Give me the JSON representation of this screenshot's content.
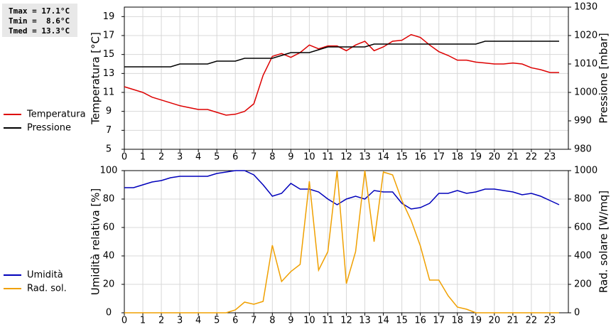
{
  "chart_data": [
    {
      "type": "line",
      "annotations": [
        "Tmax = 17.1°C",
        "Tmin =  8.6°C",
        "Tmed = 13.3°C"
      ],
      "ylabel": "Temperatura [°C]",
      "y2label": "Pressione [mbar]",
      "x": [
        0,
        0.5,
        1,
        1.5,
        2,
        2.5,
        3,
        3.5,
        4,
        4.5,
        5,
        5.5,
        6,
        6.5,
        7,
        7.5,
        8,
        8.5,
        9,
        9.5,
        10,
        10.5,
        11,
        11.5,
        12,
        12.5,
        13,
        13.5,
        14,
        14.5,
        15,
        15.5,
        16,
        16.5,
        17,
        17.5,
        18,
        18.5,
        19,
        19.5,
        20,
        20.5,
        21,
        21.5,
        22,
        22.5,
        23,
        23.5
      ],
      "xlim": [
        0,
        24
      ],
      "xticks": [
        0,
        1,
        2,
        3,
        4,
        5,
        6,
        7,
        8,
        9,
        10,
        11,
        12,
        13,
        14,
        15,
        16,
        17,
        18,
        19,
        20,
        21,
        22,
        23
      ],
      "ylim": [
        5,
        20
      ],
      "yticks": [
        5,
        7,
        9,
        11,
        13,
        15,
        17,
        19
      ],
      "y2lim": [
        980,
        1030
      ],
      "y2ticks": [
        980,
        990,
        1000,
        1010,
        1020,
        1030
      ],
      "grid": true,
      "series": [
        {
          "name": "Temperatura",
          "color": "#dd0000",
          "values": [
            11.6,
            11.3,
            11.0,
            10.5,
            10.2,
            9.9,
            9.6,
            9.4,
            9.2,
            9.2,
            8.9,
            8.6,
            8.7,
            9.0,
            9.8,
            12.8,
            14.8,
            15.1,
            14.7,
            15.2,
            16.0,
            15.6,
            15.9,
            15.9,
            15.4,
            16.0,
            16.4,
            15.4,
            15.8,
            16.4,
            16.5,
            17.1,
            16.8,
            16.0,
            15.3,
            14.9,
            14.4,
            14.4,
            14.2,
            14.1,
            14.0,
            14.0,
            14.1,
            14.0,
            13.6,
            13.4,
            13.1,
            13.1
          ]
        },
        {
          "name": "Pressione",
          "color": "#000000",
          "axis": "y2",
          "values": [
            1009,
            1009,
            1009,
            1009,
            1009,
            1009,
            1010,
            1010,
            1010,
            1010,
            1011,
            1011,
            1011,
            1012,
            1012,
            1012,
            1012,
            1013,
            1014,
            1014,
            1014,
            1015,
            1016,
            1016,
            1016,
            1016,
            1016,
            1017,
            1017,
            1017,
            1017,
            1017,
            1017,
            1017,
            1017,
            1017,
            1017,
            1017,
            1017,
            1018,
            1018,
            1018,
            1018,
            1018,
            1018,
            1018,
            1018,
            1018
          ]
        }
      ]
    },
    {
      "type": "line",
      "ylabel": "Umidità relativa [%]",
      "y2label": "Rad. solare [W/mq]",
      "x": [
        0,
        0.5,
        1,
        1.5,
        2,
        2.5,
        3,
        3.5,
        4,
        4.5,
        5,
        5.5,
        6,
        6.5,
        7,
        7.5,
        8,
        8.5,
        9,
        9.5,
        10,
        10.5,
        11,
        11.5,
        12,
        12.5,
        13,
        13.5,
        14,
        14.5,
        15,
        15.5,
        16,
        16.5,
        17,
        17.5,
        18,
        18.5,
        19,
        19.5,
        20,
        20.5,
        21,
        21.5,
        22,
        22.5,
        23,
        23.5
      ],
      "xlim": [
        0,
        24
      ],
      "xticks": [
        0,
        1,
        2,
        3,
        4,
        5,
        6,
        7,
        8,
        9,
        10,
        11,
        12,
        13,
        14,
        15,
        16,
        17,
        18,
        19,
        20,
        21,
        22,
        23
      ],
      "ylim": [
        0,
        100
      ],
      "yticks": [
        0,
        20,
        40,
        60,
        80,
        100
      ],
      "y2lim": [
        0,
        1000
      ],
      "y2ticks": [
        0,
        200,
        400,
        600,
        800,
        1000
      ],
      "grid": true,
      "series": [
        {
          "name": "Umidità",
          "color": "#0000bb",
          "values": [
            88,
            88,
            90,
            92,
            93,
            95,
            96,
            96,
            96,
            96,
            98,
            99,
            100,
            100,
            97,
            90,
            82,
            84,
            91,
            87,
            87,
            85,
            80,
            76,
            80,
            82,
            80,
            86,
            85,
            85,
            77,
            73,
            74,
            77,
            84,
            84,
            86,
            84,
            85,
            87,
            87,
            86,
            85,
            83,
            84,
            82,
            79,
            76
          ]
        },
        {
          "name": "Rad. sol.",
          "color": "#f0a000",
          "axis": "y2",
          "values": [
            0,
            0,
            0,
            0,
            0,
            0,
            0,
            0,
            0,
            0,
            0,
            0,
            20,
            75,
            60,
            80,
            475,
            220,
            290,
            340,
            925,
            300,
            430,
            1000,
            205,
            430,
            1000,
            500,
            990,
            970,
            790,
            650,
            470,
            230,
            230,
            120,
            40,
            25,
            0,
            0,
            0,
            0,
            0,
            0,
            0,
            0,
            0,
            0
          ]
        }
      ]
    }
  ]
}
